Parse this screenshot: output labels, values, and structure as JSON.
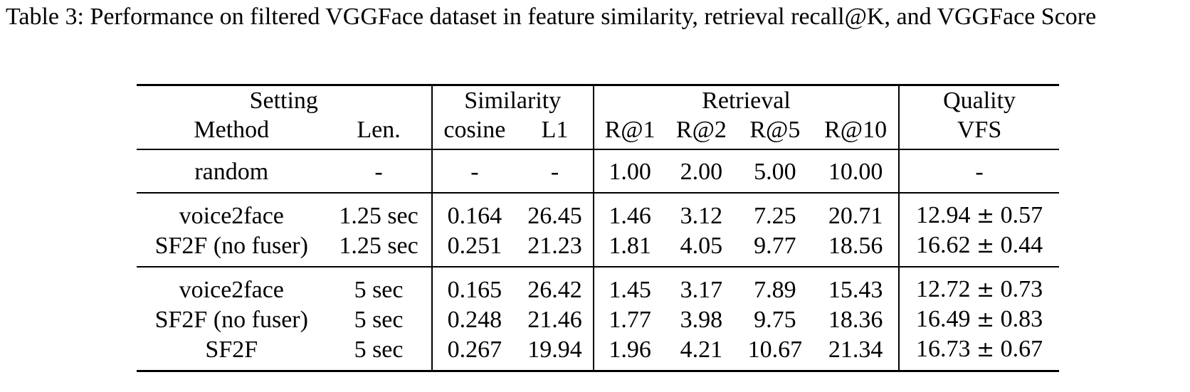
{
  "caption": "Table 3: Performance on filtered VGGFace dataset in feature similarity, retrieval recall@K, and VGGFace Score",
  "groups": {
    "setting": "Setting",
    "similarity": "Similarity",
    "retrieval": "Retrieval",
    "quality": "Quality"
  },
  "columns": {
    "method": "Method",
    "len": "Len.",
    "cosine": "cosine",
    "l1": "L1",
    "r1": "R@1",
    "r2": "R@2",
    "r5": "R@5",
    "r10": "R@10",
    "vfs": "VFS"
  },
  "rows": [
    {
      "method": "random",
      "len": "-",
      "cosine": "-",
      "l1": "-",
      "r1": "1.00",
      "r2": "2.00",
      "r5": "5.00",
      "r10": "10.00",
      "vfs_mean": "-",
      "vfs_pm": "",
      "vfs_std": ""
    },
    {
      "method": "voice2face",
      "len": "1.25 sec",
      "cosine": "0.164",
      "l1": "26.45",
      "r1": "1.46",
      "r2": "3.12",
      "r5": "7.25",
      "r10": "20.71",
      "vfs_mean": "12.94",
      "vfs_pm": "±",
      "vfs_std": "0.57"
    },
    {
      "method": "SF2F (no fuser)",
      "len": "1.25 sec",
      "cosine": "0.251",
      "l1": "21.23",
      "r1": "1.81",
      "r2": "4.05",
      "r5": "9.77",
      "r10": "18.56",
      "vfs_mean": "16.62",
      "vfs_pm": "±",
      "vfs_std": "0.44"
    },
    {
      "method": "voice2face",
      "len": "5 sec",
      "cosine": "0.165",
      "l1": "26.42",
      "r1": "1.45",
      "r2": "3.17",
      "r5": "7.89",
      "r10": "15.43",
      "vfs_mean": "12.72",
      "vfs_pm": "±",
      "vfs_std": "0.73"
    },
    {
      "method": "SF2F (no fuser)",
      "len": "5 sec",
      "cosine": "0.248",
      "l1": "21.46",
      "r1": "1.77",
      "r2": "3.98",
      "r5": "9.75",
      "r10": "18.36",
      "vfs_mean": "16.49",
      "vfs_pm": "±",
      "vfs_std": "0.83"
    },
    {
      "method": "SF2F",
      "len": "5 sec",
      "cosine": "0.267",
      "l1": "19.94",
      "r1": "1.96",
      "r2": "4.21",
      "r5": "10.67",
      "r10": "21.34",
      "vfs_mean": "16.73",
      "vfs_pm": "±",
      "vfs_std": "0.67"
    }
  ]
}
